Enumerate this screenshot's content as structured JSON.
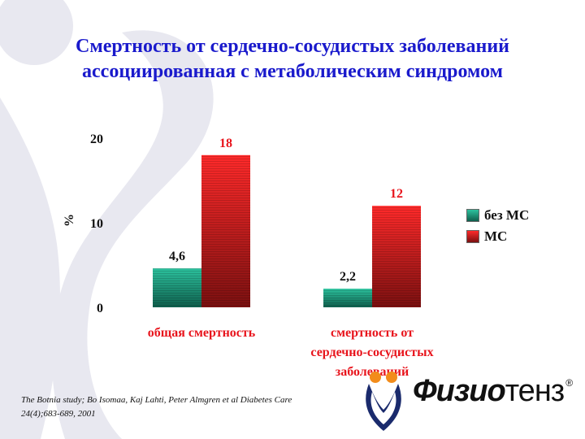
{
  "title_lines": [
    "Смертность от сердечно-сосудистых заболеваний",
    "ассоциированная с метаболическим синдромом"
  ],
  "chart_data": {
    "type": "bar",
    "title": "Смертность от сердечно-сосудистых заболеваний ассоциированная с метаболическим синдромом",
    "ylabel": "%",
    "ylim": [
      0,
      20
    ],
    "yticks": [
      "0",
      "10",
      "20"
    ],
    "categories": [
      [
        "общая смертность"
      ],
      [
        "смертность от",
        "сердечно-сосудистых",
        "заболеваний"
      ]
    ],
    "series": [
      {
        "name": "без МС",
        "values": [
          4.6,
          2.2
        ],
        "labels": [
          "4,6",
          "2,2"
        ],
        "color": "#1fa58a"
      },
      {
        "name": "МС",
        "values": [
          18,
          12
        ],
        "labels": [
          "18",
          "12"
        ],
        "color": "#e8141c"
      }
    ],
    "legend_position": "right",
    "grid": false
  },
  "citation_lines": [
    "The Botnia study; Bo Isomaa, Kaj Lahti, Peter Almgren et al Diabetes Care",
    "24(4);683-689, 2001"
  ],
  "logo": {
    "part1": "Физио",
    "part2": "тенз",
    "reg": "®"
  },
  "colors": {
    "title": "#1a1acc",
    "category_label": "#e8141c",
    "value_red": "#e8141c",
    "value_dark": "#111111"
  }
}
